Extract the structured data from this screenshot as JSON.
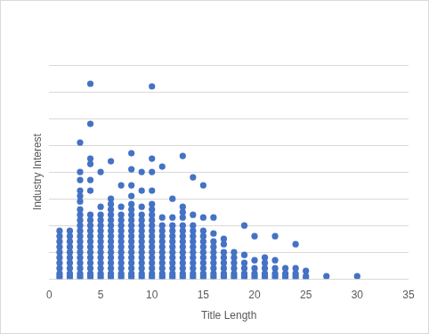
{
  "chart_data": {
    "type": "scatter",
    "xlabel": "Title Length",
    "ylabel": "Industry Interest",
    "color": "#4472c4",
    "marker": "circle",
    "grid": true,
    "tick_labels": "x",
    "xlim": [
      0,
      35
    ],
    "xticks": [
      0,
      5,
      10,
      15,
      20,
      25,
      30,
      35
    ],
    "ylim": [
      0,
      80
    ],
    "yticks": [
      0,
      10,
      20,
      30,
      40,
      50,
      60,
      70,
      80
    ],
    "x": [
      1,
      1,
      1,
      1,
      1,
      1,
      1,
      1,
      1,
      1,
      1,
      2,
      2,
      2,
      2,
      2,
      2,
      2,
      2,
      2,
      2,
      2,
      3,
      3,
      3,
      3,
      3,
      3,
      3,
      3,
      3,
      3,
      3,
      3,
      3,
      3,
      3,
      3,
      3,
      3,
      3,
      3,
      3,
      4,
      4,
      4,
      4,
      4,
      4,
      4,
      4,
      4,
      4,
      4,
      4,
      4,
      4,
      4,
      4,
      4,
      4,
      4,
      4,
      5,
      5,
      5,
      5,
      5,
      5,
      5,
      5,
      5,
      5,
      5,
      5,
      5,
      5,
      5,
      5,
      6,
      6,
      6,
      6,
      6,
      6,
      6,
      6,
      6,
      6,
      6,
      6,
      6,
      6,
      6,
      6,
      6,
      6,
      7,
      7,
      7,
      7,
      7,
      7,
      7,
      7,
      7,
      7,
      7,
      7,
      7,
      7,
      7,
      7,
      8,
      8,
      8,
      8,
      8,
      8,
      8,
      8,
      8,
      8,
      8,
      8,
      8,
      8,
      8,
      8,
      8,
      8,
      8,
      8,
      9,
      9,
      9,
      9,
      9,
      9,
      9,
      9,
      9,
      9,
      9,
      9,
      9,
      9,
      9,
      9,
      9,
      10,
      10,
      10,
      10,
      10,
      10,
      10,
      10,
      10,
      10,
      10,
      10,
      10,
      10,
      10,
      10,
      10,
      10,
      10,
      10,
      11,
      11,
      11,
      11,
      11,
      11,
      11,
      11,
      11,
      11,
      11,
      11,
      11,
      11,
      12,
      12,
      12,
      12,
      12,
      12,
      12,
      12,
      12,
      12,
      12,
      12,
      12,
      12,
      13,
      13,
      13,
      13,
      13,
      13,
      13,
      13,
      13,
      13,
      13,
      13,
      13,
      13,
      13,
      13,
      14,
      14,
      14,
      14,
      14,
      14,
      14,
      14,
      14,
      14,
      14,
      14,
      14,
      14,
      15,
      15,
      15,
      15,
      15,
      15,
      15,
      15,
      15,
      15,
      15,
      15,
      15,
      16,
      16,
      16,
      16,
      16,
      16,
      16,
      16,
      16,
      16,
      16,
      17,
      17,
      17,
      17,
      17,
      17,
      17,
      17,
      17,
      18,
      18,
      18,
      18,
      18,
      18,
      18,
      19,
      19,
      19,
      19,
      19,
      19,
      19,
      20,
      20,
      20,
      20,
      20,
      20,
      21,
      21,
      21,
      21,
      21,
      21,
      22,
      22,
      22,
      22,
      22,
      22,
      23,
      23,
      23,
      23,
      24,
      24,
      24,
      24,
      24,
      25,
      25,
      25,
      27,
      30
    ],
    "values": [
      0,
      1,
      2,
      4,
      6,
      8,
      10,
      12,
      14,
      16,
      18,
      0,
      1,
      2,
      4,
      6,
      8,
      10,
      12,
      14,
      16,
      18,
      0,
      1,
      2,
      4,
      6,
      8,
      10,
      12,
      14,
      16,
      18,
      20,
      22,
      24,
      26,
      29,
      31,
      33,
      37,
      40,
      51,
      0,
      1,
      2,
      4,
      6,
      8,
      10,
      12,
      14,
      16,
      18,
      20,
      22,
      24,
      33,
      37,
      43,
      45,
      58,
      73,
      0,
      1,
      2,
      4,
      6,
      8,
      10,
      12,
      14,
      16,
      18,
      20,
      22,
      24,
      27,
      40,
      0,
      1,
      2,
      4,
      6,
      8,
      10,
      12,
      14,
      16,
      18,
      20,
      22,
      24,
      26,
      28,
      30,
      44,
      0,
      1,
      2,
      4,
      6,
      8,
      10,
      12,
      14,
      16,
      18,
      20,
      22,
      24,
      27,
      35,
      0,
      1,
      2,
      4,
      6,
      8,
      10,
      12,
      14,
      16,
      18,
      20,
      22,
      24,
      26,
      28,
      31,
      35,
      41,
      47,
      0,
      1,
      2,
      4,
      6,
      8,
      10,
      12,
      14,
      16,
      18,
      20,
      22,
      24,
      27,
      33,
      40,
      0,
      1,
      2,
      4,
      6,
      8,
      10,
      12,
      14,
      16,
      18,
      20,
      22,
      24,
      26,
      28,
      33,
      40,
      45,
      72,
      0,
      1,
      2,
      4,
      6,
      8,
      10,
      12,
      14,
      16,
      18,
      20,
      23,
      42,
      0,
      1,
      2,
      4,
      6,
      8,
      10,
      12,
      14,
      16,
      18,
      20,
      23,
      30,
      0,
      1,
      2,
      4,
      6,
      8,
      10,
      12,
      14,
      16,
      18,
      20,
      23,
      25,
      27,
      46,
      0,
      1,
      2,
      4,
      6,
      8,
      10,
      12,
      14,
      16,
      18,
      20,
      24,
      38,
      0,
      1,
      2,
      4,
      6,
      8,
      10,
      12,
      14,
      16,
      18,
      23,
      35,
      0,
      1,
      2,
      4,
      6,
      8,
      10,
      12,
      14,
      17,
      23,
      0,
      1,
      2,
      4,
      6,
      8,
      10,
      13,
      15,
      0,
      1,
      2,
      4,
      6,
      8,
      10,
      0,
      1,
      2,
      4,
      6,
      9,
      20,
      0,
      1,
      2,
      4,
      7,
      16,
      0,
      1,
      2,
      4,
      6,
      8,
      0,
      1,
      2,
      4,
      7,
      16,
      0,
      1,
      2,
      4,
      0,
      1,
      2,
      4,
      13,
      0,
      1,
      3,
      1,
      1
    ]
  }
}
